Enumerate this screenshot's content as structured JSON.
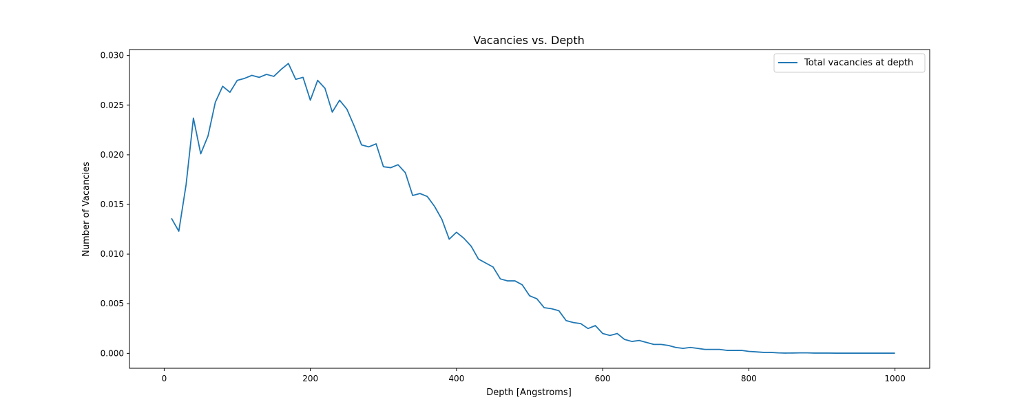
{
  "chart_data": {
    "type": "line",
    "title": "Vacancies vs. Depth",
    "xlabel": "Depth [Angstroms]",
    "ylabel": "Number of Vacancies",
    "xlim": [
      -47.5,
      1047.5
    ],
    "ylim": [
      -0.0015,
      0.0306
    ],
    "xticks": [
      0,
      200,
      400,
      600,
      800,
      1000
    ],
    "xtick_labels": [
      "0",
      "200",
      "400",
      "600",
      "800",
      "1000"
    ],
    "yticks": [
      0.0,
      0.005,
      0.01,
      0.015,
      0.02,
      0.025,
      0.03
    ],
    "ytick_labels": [
      "0.000",
      "0.005",
      "0.010",
      "0.015",
      "0.020",
      "0.025",
      "0.030"
    ],
    "grid": false,
    "legend_position": "top-right",
    "series": [
      {
        "name": "Total vacancies at depth",
        "color": "#1f77b4",
        "x": [
          10,
          20,
          30,
          40,
          50,
          60,
          70,
          80,
          90,
          100,
          110,
          120,
          130,
          140,
          150,
          160,
          170,
          180,
          190,
          200,
          210,
          220,
          230,
          240,
          250,
          260,
          270,
          280,
          290,
          300,
          310,
          320,
          330,
          340,
          350,
          360,
          370,
          380,
          390,
          400,
          410,
          420,
          430,
          440,
          450,
          460,
          470,
          480,
          490,
          500,
          510,
          520,
          530,
          540,
          550,
          560,
          570,
          580,
          590,
          600,
          610,
          620,
          630,
          640,
          650,
          660,
          670,
          680,
          690,
          700,
          710,
          720,
          730,
          740,
          750,
          760,
          770,
          780,
          790,
          800,
          810,
          820,
          830,
          840,
          850,
          860,
          870,
          880,
          890,
          900,
          910,
          920,
          930,
          940,
          950,
          960,
          970,
          980,
          990,
          1000
        ],
        "y": [
          0.0136,
          0.0123,
          0.017,
          0.0237,
          0.0201,
          0.0219,
          0.0253,
          0.0269,
          0.0263,
          0.0275,
          0.0277,
          0.028,
          0.0278,
          0.0281,
          0.0279,
          0.0286,
          0.0292,
          0.0276,
          0.0278,
          0.0255,
          0.0275,
          0.0267,
          0.0243,
          0.0255,
          0.0246,
          0.0229,
          0.021,
          0.0208,
          0.0211,
          0.0188,
          0.0187,
          0.019,
          0.0182,
          0.0159,
          0.0161,
          0.0158,
          0.0148,
          0.0135,
          0.0115,
          0.0122,
          0.0116,
          0.0108,
          0.0095,
          0.0091,
          0.0087,
          0.0075,
          0.0073,
          0.0073,
          0.0069,
          0.0058,
          0.0055,
          0.0046,
          0.0045,
          0.0043,
          0.0033,
          0.0031,
          0.003,
          0.0025,
          0.0028,
          0.002,
          0.0018,
          0.002,
          0.0014,
          0.0012,
          0.0013,
          0.0011,
          0.0009,
          0.0009,
          0.0008,
          0.0006,
          0.0005,
          0.0006,
          0.0005,
          0.0004,
          0.0004,
          0.0004,
          0.0003,
          0.0003,
          0.0003,
          0.0002,
          0.00015,
          0.0001,
          0.0001,
          5e-05,
          3e-05,
          4e-05,
          5e-05,
          5e-05,
          3e-05,
          3e-05,
          3e-05,
          2e-05,
          2e-05,
          2e-05,
          2e-05,
          2e-05,
          2e-05,
          2e-05,
          2e-05,
          2e-05
        ]
      }
    ]
  }
}
